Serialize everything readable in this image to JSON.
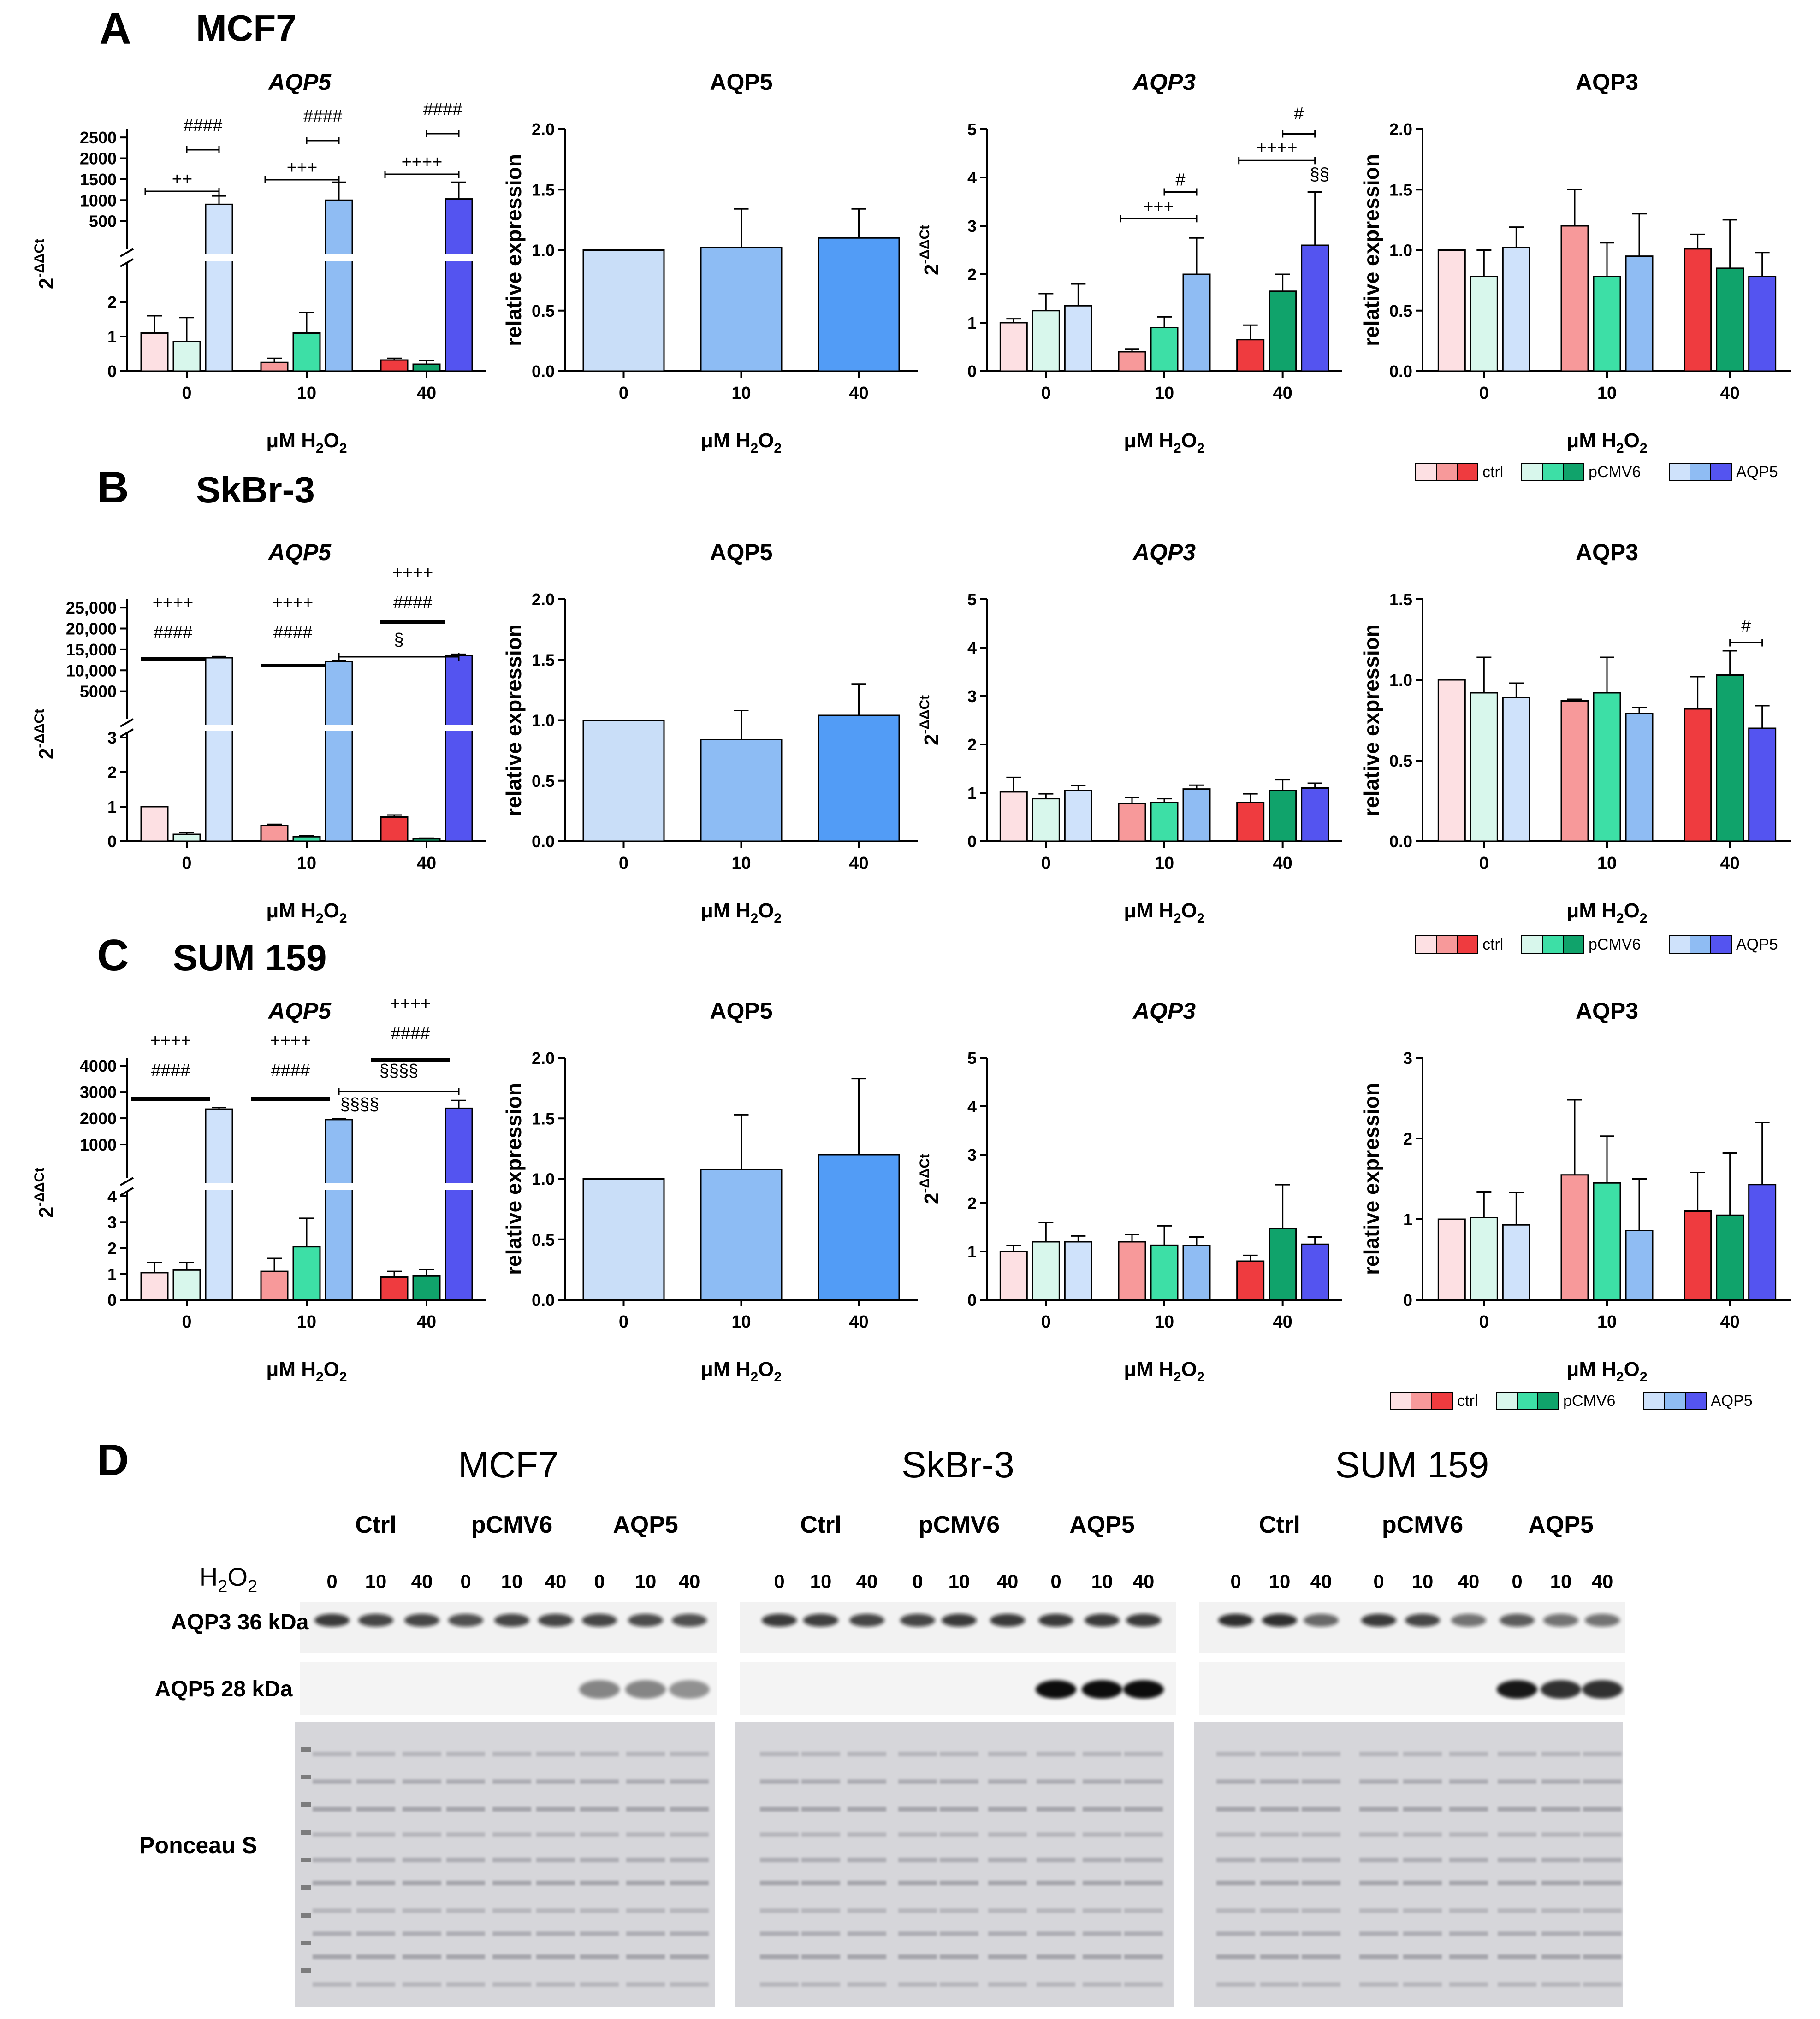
{
  "figure": {
    "panel_letters": [
      "A",
      "B",
      "C",
      "D"
    ],
    "cell_lines": [
      "MCF7",
      "SkBr-3",
      "SUM 159"
    ],
    "row_titles": [
      "MCF7",
      "SkBr-3",
      "SUM 159"
    ]
  },
  "colors": {
    "ctrl": [
      "#fde0e3",
      "#f7999a",
      "#ef3b3f"
    ],
    "pCMV6": [
      "#d8f7ec",
      "#3ddfa6",
      "#10a36b"
    ],
    "AQP5": [
      "#cfe2fb",
      "#8fbcf3",
      "#5454f0"
    ],
    "protein": [
      "#c9def8",
      "#8dbcf4",
      "#529cf6"
    ]
  },
  "legend": {
    "ctrl": "ctrl",
    "pCMV6": "pCMV6",
    "AQP5": "AQP5"
  },
  "chart_data": [
    {
      "id": "A-AQP5-mRNA",
      "type": "bar",
      "title": "AQP5",
      "title_italic": true,
      "ylabel": "2-ΔΔCt",
      "xlabel": "μM H2O2",
      "categories": [
        "0",
        "10",
        "40"
      ],
      "broken_axis": {
        "lower_ylim": [
          0,
          3
        ],
        "lower_ticks": [
          "0",
          "1",
          "2"
        ],
        "upper_ylim": [
          0,
          2700
        ],
        "upper_ticks": [
          "500",
          "1000",
          "1500",
          "2000",
          "2500"
        ]
      },
      "series": [
        {
          "name": "ctrl",
          "values": [
            1.1,
            0.25,
            0.32
          ],
          "errors": [
            0.5,
            0.12,
            0.05
          ]
        },
        {
          "name": "pCMV6",
          "values": [
            0.85,
            1.1,
            0.2
          ],
          "errors": [
            0.7,
            0.6,
            0.1
          ]
        },
        {
          "name": "AQP5",
          "values": [
            900,
            1000,
            1030
          ],
          "errors": [
            200,
            430,
            400
          ]
        }
      ],
      "annotations": [
        {
          "text": "++",
          "from": [
            0,
            "ctrl"
          ],
          "to": [
            0,
            "AQP5"
          ]
        },
        {
          "text": "####",
          "from": [
            0,
            "pCMV6"
          ],
          "to": [
            0,
            "AQP5"
          ]
        },
        {
          "text": "+++",
          "from": [
            1,
            "ctrl"
          ],
          "to": [
            1,
            "AQP5"
          ]
        },
        {
          "text": "####",
          "from": [
            1,
            "pCMV6"
          ],
          "to": [
            1,
            "AQP5"
          ]
        },
        {
          "text": "++++",
          "from": [
            2,
            "ctrl"
          ],
          "to": [
            2,
            "AQP5"
          ]
        },
        {
          "text": "####",
          "from": [
            2,
            "pCMV6"
          ],
          "to": [
            2,
            "AQP5"
          ]
        }
      ]
    },
    {
      "id": "A-AQP5-protein",
      "type": "bar",
      "title": "AQP5",
      "ylabel": "relative expression",
      "xlabel": "μM H2O2",
      "categories": [
        "0",
        "10",
        "40"
      ],
      "ylim": [
        0,
        2.0
      ],
      "yticks": [
        "0.0",
        "0.5",
        "1.0",
        "1.5",
        "2.0"
      ],
      "values": [
        1.0,
        1.02,
        1.1
      ],
      "errors": [
        0,
        0.32,
        0.24
      ]
    },
    {
      "id": "A-AQP3-mRNA",
      "type": "bar",
      "title": "AQP3",
      "title_italic": true,
      "ylabel": "2-ΔΔCt",
      "xlabel": "μM H2O2",
      "categories": [
        "0",
        "10",
        "40"
      ],
      "ylim": [
        0,
        5
      ],
      "yticks": [
        "0",
        "1",
        "2",
        "3",
        "4",
        "5"
      ],
      "series": [
        {
          "name": "ctrl",
          "values": [
            1.0,
            0.4,
            0.65
          ],
          "errors": [
            0.08,
            0.05,
            0.3
          ]
        },
        {
          "name": "pCMV6",
          "values": [
            1.25,
            0.9,
            1.65
          ],
          "errors": [
            0.35,
            0.22,
            0.35
          ]
        },
        {
          "name": "AQP5",
          "values": [
            1.35,
            2.0,
            2.6
          ],
          "errors": [
            0.45,
            0.75,
            1.1
          ]
        }
      ],
      "annotations": [
        {
          "text": "+++",
          "from": [
            1,
            "ctrl"
          ],
          "to": [
            1,
            "AQP5"
          ]
        },
        {
          "text": "#",
          "from": [
            1,
            "pCMV6"
          ],
          "to": [
            1,
            "AQP5"
          ]
        },
        {
          "text": "++++",
          "from": [
            2,
            "ctrl"
          ],
          "to": [
            2,
            "AQP5"
          ]
        },
        {
          "text": "#",
          "from": [
            2,
            "pCMV6"
          ],
          "to": [
            2,
            "AQP5"
          ]
        },
        {
          "text": "§§",
          "at": [
            2,
            "AQP5"
          ]
        }
      ]
    },
    {
      "id": "A-AQP3-protein",
      "type": "bar",
      "title": "AQP3",
      "ylabel": "relative expression",
      "xlabel": "μM H2O2",
      "categories": [
        "0",
        "10",
        "40"
      ],
      "ylim": [
        0,
        2.0
      ],
      "yticks": [
        "0.0",
        "0.5",
        "1.0",
        "1.5",
        "2.0"
      ],
      "series": [
        {
          "name": "ctrl",
          "values": [
            1.0,
            1.2,
            1.01
          ],
          "errors": [
            0,
            0.3,
            0.12
          ]
        },
        {
          "name": "pCMV6",
          "values": [
            0.78,
            0.78,
            0.85
          ],
          "errors": [
            0.22,
            0.28,
            0.4
          ]
        },
        {
          "name": "AQP5",
          "values": [
            1.02,
            0.95,
            0.78
          ],
          "errors": [
            0.17,
            0.35,
            0.2
          ]
        }
      ]
    },
    {
      "id": "B-AQP5-mRNA",
      "type": "bar",
      "title": "AQP5",
      "title_italic": true,
      "ylabel": "2-ΔΔCt",
      "xlabel": "μM H2O2",
      "categories": [
        "0",
        "10",
        "40"
      ],
      "broken_axis": {
        "lower_ylim": [
          0,
          3
        ],
        "lower_ticks": [
          "0",
          "1",
          "2",
          "3"
        ],
        "upper_ylim": [
          0,
          27000
        ],
        "upper_ticks": [
          "5000",
          "10,000",
          "15,000",
          "20,000",
          "25,000"
        ]
      },
      "series": [
        {
          "name": "ctrl",
          "values": [
            1.0,
            0.45,
            0.7
          ],
          "errors": [
            0,
            0.04,
            0.06
          ]
        },
        {
          "name": "pCMV6",
          "values": [
            0.2,
            0.13,
            0.07
          ],
          "errors": [
            0.06,
            0.03,
            0.02
          ]
        },
        {
          "name": "AQP5",
          "values": [
            13000,
            12100,
            13600
          ],
          "errors": [
            300,
            250,
            250
          ]
        }
      ],
      "annotations": [
        {
          "text": "++++",
          "group": 0
        },
        {
          "text": "####",
          "group": 0
        },
        {
          "text": "++++",
          "group": 1
        },
        {
          "text": "####",
          "group": 1
        },
        {
          "text": "++++",
          "group": 2
        },
        {
          "text": "####",
          "group": 2
        },
        {
          "text": "§",
          "from": [
            1,
            "AQP5"
          ],
          "to": [
            2,
            "AQP5"
          ]
        }
      ]
    },
    {
      "id": "B-AQP5-protein",
      "type": "bar",
      "title": "AQP5",
      "ylabel": "relative expression",
      "xlabel": "μM H2O2",
      "categories": [
        "0",
        "10",
        "40"
      ],
      "ylim": [
        0,
        2.0
      ],
      "yticks": [
        "0.0",
        "0.5",
        "1.0",
        "1.5",
        "2.0"
      ],
      "values": [
        1.0,
        0.84,
        1.04
      ],
      "errors": [
        0,
        0.24,
        0.26
      ]
    },
    {
      "id": "B-AQP3-mRNA",
      "type": "bar",
      "title": "AQP3",
      "title_italic": true,
      "ylabel": "2-ΔΔCt",
      "xlabel": "μM H2O2",
      "categories": [
        "0",
        "10",
        "40"
      ],
      "ylim": [
        0,
        5
      ],
      "yticks": [
        "0",
        "1",
        "2",
        "3",
        "4",
        "5"
      ],
      "series": [
        {
          "name": "ctrl",
          "values": [
            1.02,
            0.78,
            0.8
          ],
          "errors": [
            0.3,
            0.12,
            0.18
          ]
        },
        {
          "name": "pCMV6",
          "values": [
            0.88,
            0.8,
            1.05
          ],
          "errors": [
            0.1,
            0.08,
            0.22
          ]
        },
        {
          "name": "AQP5",
          "values": [
            1.05,
            1.08,
            1.1
          ],
          "errors": [
            0.1,
            0.08,
            0.1
          ]
        }
      ]
    },
    {
      "id": "B-AQP3-protein",
      "type": "bar",
      "title": "AQP3",
      "ylabel": "relative expression",
      "xlabel": "μM H2O2",
      "categories": [
        "0",
        "10",
        "40"
      ],
      "ylim": [
        0,
        1.5
      ],
      "yticks": [
        "0.0",
        "0.5",
        "1.0",
        "1.5"
      ],
      "series": [
        {
          "name": "ctrl",
          "values": [
            1.0,
            0.87,
            0.82
          ],
          "errors": [
            0,
            0.01,
            0.2
          ]
        },
        {
          "name": "pCMV6",
          "values": [
            0.92,
            0.92,
            1.03
          ],
          "errors": [
            0.22,
            0.22,
            0.15
          ]
        },
        {
          "name": "AQP5",
          "values": [
            0.89,
            0.79,
            0.7
          ],
          "errors": [
            0.09,
            0.04,
            0.14
          ]
        }
      ],
      "annotations": [
        {
          "text": "#",
          "from": [
            2,
            "pCMV6"
          ],
          "to": [
            2,
            "AQP5"
          ]
        }
      ]
    },
    {
      "id": "C-AQP5-mRNA",
      "type": "bar",
      "title": "AQP5",
      "title_italic": true,
      "ylabel": "2-ΔΔCt",
      "xlabel": "μM H2O2",
      "categories": [
        "0",
        "10",
        "40"
      ],
      "broken_axis": {
        "lower_ylim": [
          0,
          4
        ],
        "lower_ticks": [
          "0",
          "1",
          "2",
          "3",
          "4"
        ],
        "upper_ylim": [
          0,
          4300
        ],
        "upper_ticks": [
          "1000",
          "2000",
          "3000",
          "4000"
        ]
      },
      "series": [
        {
          "name": "ctrl",
          "values": [
            1.05,
            1.1,
            0.88
          ],
          "errors": [
            0.4,
            0.5,
            0.22
          ]
        },
        {
          "name": "pCMV6",
          "values": [
            1.15,
            2.05,
            0.92
          ],
          "errors": [
            0.3,
            1.1,
            0.25
          ]
        },
        {
          "name": "AQP5",
          "values": [
            2350,
            1950,
            2380
          ],
          "errors": [
            60,
            40,
            300
          ]
        }
      ],
      "annotations": [
        {
          "text": "++++",
          "group": 0
        },
        {
          "text": "####",
          "group": 0
        },
        {
          "text": "++++",
          "group": 1
        },
        {
          "text": "####",
          "group": 1
        },
        {
          "text": "++++",
          "group": 2
        },
        {
          "text": "####",
          "group": 2
        },
        {
          "text": "§§§§",
          "from": [
            1,
            "AQP5"
          ],
          "to": [
            2,
            "AQP5"
          ]
        },
        {
          "text": "§§§§",
          "at": [
            1,
            "AQP5"
          ]
        }
      ]
    },
    {
      "id": "C-AQP5-protein",
      "type": "bar",
      "title": "AQP5",
      "ylabel": "relative expression",
      "xlabel": "μM H2O2",
      "categories": [
        "0",
        "10",
        "40"
      ],
      "ylim": [
        0,
        2.0
      ],
      "yticks": [
        "0.0",
        "0.5",
        "1.0",
        "1.5",
        "2.0"
      ],
      "values": [
        1.0,
        1.08,
        1.2
      ],
      "errors": [
        0,
        0.45,
        0.63
      ]
    },
    {
      "id": "C-AQP3-mRNA",
      "type": "bar",
      "title": "AQP3",
      "title_italic": true,
      "ylabel": "2-ΔΔCt",
      "xlabel": "μM H2O2",
      "categories": [
        "0",
        "10",
        "40"
      ],
      "ylim": [
        0,
        5
      ],
      "yticks": [
        "0",
        "1",
        "2",
        "3",
        "4",
        "5"
      ],
      "series": [
        {
          "name": "ctrl",
          "values": [
            1.0,
            1.2,
            0.8
          ],
          "errors": [
            0.12,
            0.15,
            0.12
          ]
        },
        {
          "name": "pCMV6",
          "values": [
            1.2,
            1.13,
            1.48
          ],
          "errors": [
            0.4,
            0.4,
            0.9
          ]
        },
        {
          "name": "AQP5",
          "values": [
            1.2,
            1.12,
            1.15
          ],
          "errors": [
            0.12,
            0.18,
            0.15
          ]
        }
      ]
    },
    {
      "id": "C-AQP3-protein",
      "type": "bar",
      "title": "AQP3",
      "ylabel": "relative expression",
      "xlabel": "μM H2O2",
      "categories": [
        "0",
        "10",
        "40"
      ],
      "ylim": [
        0,
        3
      ],
      "yticks": [
        "0",
        "1",
        "2",
        "3"
      ],
      "series": [
        {
          "name": "ctrl",
          "values": [
            1.0,
            1.55,
            1.1
          ],
          "errors": [
            0,
            0.93,
            0.48
          ]
        },
        {
          "name": "pCMV6",
          "values": [
            1.02,
            1.45,
            1.05
          ],
          "errors": [
            0.32,
            0.58,
            0.77
          ]
        },
        {
          "name": "AQP5",
          "values": [
            0.93,
            0.86,
            1.43
          ],
          "errors": [
            0.4,
            0.64,
            0.77
          ]
        }
      ]
    }
  ],
  "western_blot": {
    "title": "D",
    "group_labels": [
      "Ctrl",
      "pCMV6",
      "AQP5"
    ],
    "h2o2_label": "H2O2",
    "lane_doses": [
      "0",
      "10",
      "40",
      "0",
      "10",
      "40",
      "0",
      "10",
      "40"
    ],
    "rows": [
      {
        "label": "AQP3",
        "mw": "36 kDa"
      },
      {
        "label": "AQP5",
        "mw": "28 kDa"
      },
      {
        "label": "Ponceau S",
        "mw": ""
      }
    ],
    "band_intensity": {
      "MCF7": {
        "AQP3": [
          0.8,
          0.75,
          0.75,
          0.7,
          0.75,
          0.75,
          0.75,
          0.72,
          0.7
        ],
        "AQP5": [
          0,
          0,
          0,
          0,
          0,
          0,
          0.45,
          0.45,
          0.4
        ]
      },
      "SkBr-3": {
        "AQP3": [
          0.8,
          0.78,
          0.75,
          0.75,
          0.8,
          0.8,
          0.8,
          0.8,
          0.8
        ],
        "AQP5": [
          0,
          0,
          0,
          0,
          0,
          0,
          0.95,
          0.95,
          0.95
        ]
      },
      "SUM 159": {
        "AQP3": [
          0.85,
          0.85,
          0.6,
          0.8,
          0.75,
          0.55,
          0.65,
          0.55,
          0.55
        ],
        "AQP5": [
          0,
          0,
          0,
          0,
          0,
          0,
          0.9,
          0.8,
          0.8
        ]
      }
    }
  }
}
